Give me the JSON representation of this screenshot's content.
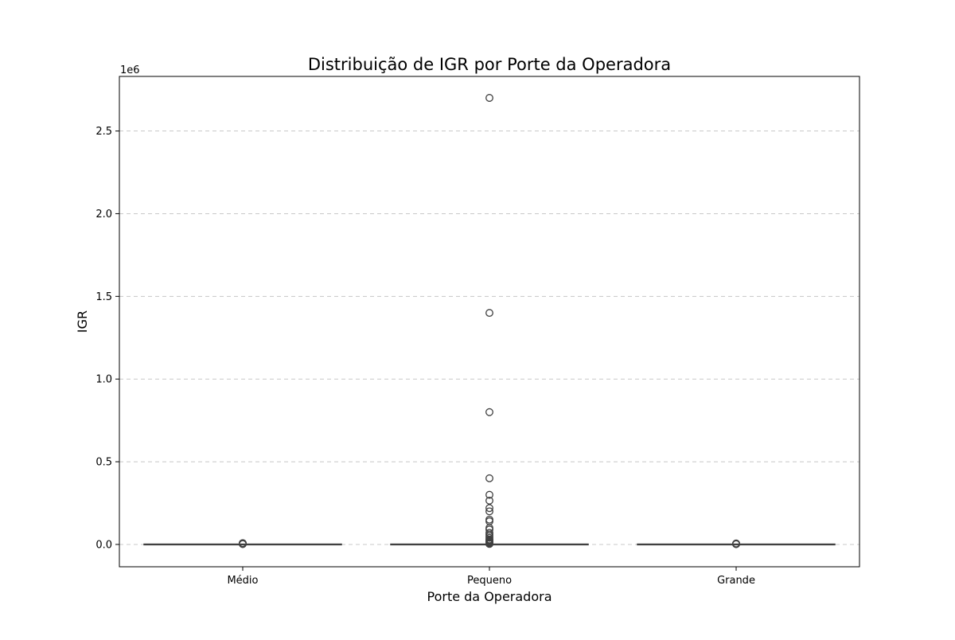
{
  "chart_data": {
    "type": "box",
    "title": "Distribuição de IGR por Porte da Operadora",
    "xlabel": "Porte da Operadora",
    "ylabel": "IGR",
    "y_offset_label": "1e6",
    "categories": [
      "Médio",
      "Pequeno",
      "Grande"
    ],
    "ylim": [
      -135000,
      2830000
    ],
    "y_ticks": [
      0,
      500000,
      1000000,
      1500000,
      2000000,
      2500000
    ],
    "y_tick_labels": [
      "0.0",
      "0.5",
      "1.0",
      "1.5",
      "2.0",
      "2.5"
    ],
    "grid": "y-dashed",
    "box_color": "#3b75af",
    "line_color": "#404040",
    "boxes": [
      {
        "category": "Médio",
        "whisker_low": 0,
        "q1": 0,
        "median": 0,
        "q3": 0,
        "whisker_high": 0,
        "outliers": [
          2000,
          3500,
          5000,
          6500,
          8000
        ]
      },
      {
        "category": "Pequeno",
        "whisker_low": 0,
        "q1": 0,
        "median": 0,
        "q3": 0,
        "whisker_high": 0,
        "outliers": [
          2700000,
          1400000,
          800000,
          400000,
          300000,
          265000,
          220000,
          200000,
          150000,
          140000,
          100000,
          90000,
          70000,
          60000,
          50000,
          40000,
          30000,
          25000,
          20000,
          15000,
          10000,
          5000,
          3000
        ]
      },
      {
        "category": "Grande",
        "whisker_low": 0,
        "q1": 0,
        "median": 0,
        "q3": 0,
        "whisker_high": 0,
        "outliers": [
          1500,
          3000,
          4500,
          6000
        ]
      }
    ]
  }
}
